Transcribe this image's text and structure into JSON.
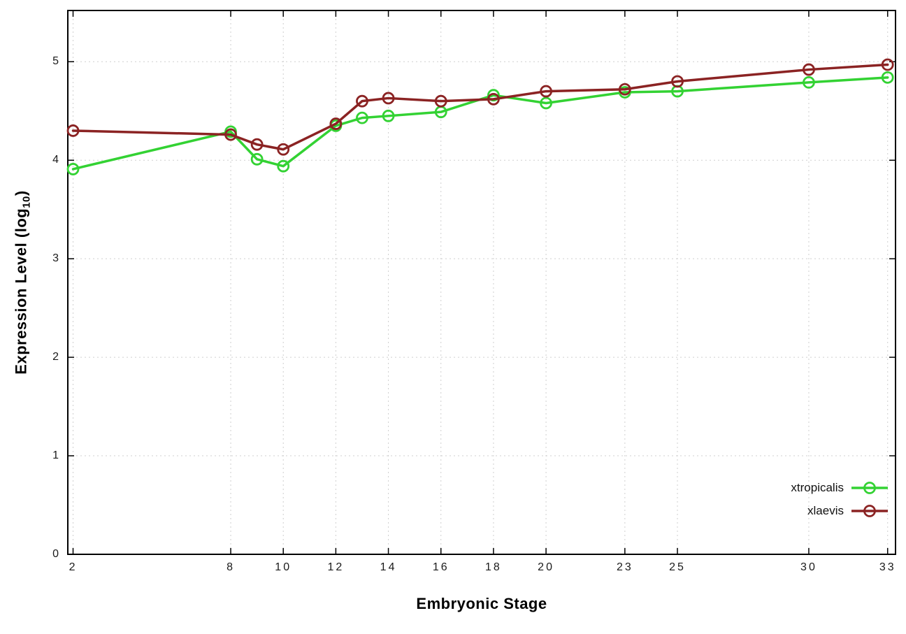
{
  "chart_data": {
    "type": "line",
    "title": "",
    "xlabel": "Embryonic Stage",
    "ylabel": "Expression Level (log10)",
    "ylabel_display": {
      "pre": "Expression Level (log",
      "sub": "10",
      "post": ")"
    },
    "x": [
      2,
      8,
      9,
      10,
      12,
      13,
      14,
      16,
      18,
      20,
      23,
      25,
      30,
      33
    ],
    "series": [
      {
        "name": "xtropicalis",
        "color": "#33d233",
        "values": [
          3.91,
          4.29,
          4.01,
          3.94,
          4.35,
          4.43,
          4.45,
          4.49,
          4.66,
          4.58,
          4.69,
          4.7,
          4.79,
          4.84
        ]
      },
      {
        "name": "xlaevis",
        "color": "#8b2323",
        "values": [
          4.3,
          4.26,
          4.16,
          4.11,
          4.37,
          4.6,
          4.63,
          4.6,
          4.62,
          4.7,
          4.72,
          4.8,
          4.92,
          4.97
        ]
      }
    ],
    "xticks": [
      2,
      8,
      10,
      12,
      14,
      16,
      18,
      20,
      23,
      25,
      30,
      33
    ],
    "yticks": [
      0,
      1,
      2,
      3,
      4,
      5
    ],
    "xlim": [
      2,
      33
    ],
    "ylim": [
      0,
      5.5
    ],
    "grid": true,
    "grid_color": "#cfcfcf",
    "border_color": "#000000",
    "background": "#ffffff",
    "legend_position": "inside bottom-right",
    "marker": "open-circle"
  }
}
